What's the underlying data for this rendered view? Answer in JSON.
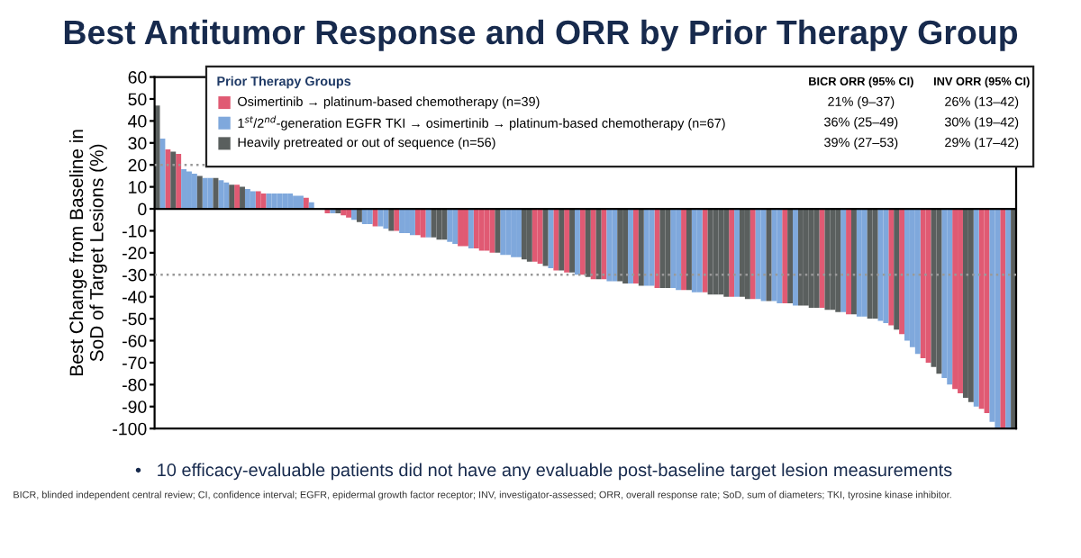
{
  "chart_data": {
    "type": "bar",
    "title": "Best Antitumor Response and ORR by Prior Therapy Group",
    "ylabel": "Best Change from Baseline in\nSoD of Target Lesions (%)",
    "legend_title": "Prior Therapy Groups",
    "legend": "top",
    "categories": [
      null,
      null,
      null,
      null,
      null,
      null,
      null,
      null,
      null,
      null,
      null,
      null,
      null,
      null,
      null,
      null,
      null,
      null,
      null,
      null,
      null,
      null,
      null,
      null,
      null,
      null,
      null,
      null,
      null,
      null,
      null,
      null,
      null,
      null,
      null,
      null,
      null,
      null,
      null,
      null,
      null,
      null,
      null,
      null,
      null,
      null,
      null,
      null,
      null,
      null,
      null,
      null,
      null,
      null,
      null,
      null,
      null,
      null,
      null,
      null,
      null,
      null,
      null,
      null,
      null,
      null,
      null,
      null,
      null,
      null,
      null,
      null,
      null,
      null,
      null,
      null,
      null,
      null,
      null,
      null,
      null,
      null,
      null,
      null,
      null,
      null,
      null,
      null,
      null,
      null,
      null,
      null,
      null,
      null,
      null,
      null,
      null,
      null,
      null,
      null,
      null,
      null,
      null,
      null,
      null,
      null,
      null,
      null,
      null,
      null,
      null,
      null,
      null,
      null,
      null,
      null,
      null,
      null,
      null,
      null,
      null,
      null,
      null,
      null,
      null,
      null,
      null,
      null,
      null,
      null,
      null,
      null,
      null,
      null,
      null,
      null,
      null,
      null,
      null,
      null,
      null,
      null,
      null,
      null,
      null,
      null,
      null,
      null,
      null,
      null,
      null,
      null,
      null,
      null,
      null,
      null,
      null,
      null,
      null,
      null,
      null,
      null
    ],
    "series": [
      {
        "name": "Osimertinib → platinum-based chemotherapy (n=39)",
        "color": "#e05a73",
        "values": [
          null,
          null,
          27,
          null,
          25,
          null,
          null,
          null,
          null,
          null,
          null,
          null,
          null,
          null,
          null,
          11,
          null,
          null,
          null,
          8,
          7,
          null,
          null,
          null,
          null,
          null,
          null,
          null,
          5,
          null,
          null,
          null,
          -2,
          null,
          null,
          -3,
          -4,
          null,
          null,
          null,
          null,
          -8,
          null,
          null,
          null,
          -10,
          null,
          null,
          null,
          -12,
          -13,
          null,
          null,
          null,
          null,
          null,
          null,
          -17,
          -17,
          null,
          -18,
          -19,
          -19,
          -20,
          null,
          null,
          null,
          null,
          null,
          null,
          null,
          -24,
          -25,
          null,
          null,
          -28,
          null,
          -29,
          null,
          null,
          -30,
          null,
          -32,
          null,
          -32,
          null,
          null,
          null,
          null,
          null,
          -34,
          null,
          null,
          null,
          -36,
          null,
          null,
          null,
          null,
          -37,
          null,
          null,
          null,
          -38,
          null,
          null,
          null,
          null,
          -40,
          null,
          null,
          null,
          -41,
          null,
          null,
          null,
          null,
          null,
          -43,
          null,
          null,
          null,
          null,
          null,
          null,
          -45,
          null,
          null,
          null,
          null,
          -48,
          null,
          null,
          null,
          null,
          null,
          null,
          null,
          -53,
          null,
          -57,
          null,
          null,
          null,
          -68,
          -70,
          null,
          null,
          null,
          null,
          -82,
          -84,
          null,
          null,
          null,
          -91,
          -93,
          null,
          null,
          -100,
          null,
          null
        ]
      },
      {
        "name": "1$^{st}$/2$^{nd}$-generation EGFR TKI → osimertinib → platinum-based chemotherapy (n=67)",
        "color": "#7fa8dc",
        "values": [
          null,
          32,
          null,
          null,
          null,
          18,
          17,
          16,
          null,
          14,
          14,
          null,
          13,
          12,
          null,
          null,
          null,
          9,
          8,
          null,
          null,
          7,
          7,
          7,
          7,
          7,
          6,
          6,
          null,
          3,
          null,
          null,
          null,
          -2,
          null,
          null,
          null,
          -5,
          null,
          -7,
          -7,
          null,
          -8,
          -9,
          null,
          null,
          -11,
          -11,
          -12,
          null,
          null,
          -13,
          null,
          null,
          null,
          -15,
          -16,
          null,
          null,
          -18,
          null,
          null,
          null,
          null,
          null,
          -21,
          -21,
          -22,
          -22,
          null,
          null,
          null,
          null,
          null,
          -27,
          null,
          null,
          null,
          null,
          -30,
          null,
          null,
          null,
          null,
          null,
          -33,
          -33,
          null,
          null,
          -34,
          null,
          null,
          -35,
          -35,
          null,
          null,
          null,
          -36,
          -37,
          null,
          null,
          -38,
          -38,
          null,
          null,
          null,
          null,
          null,
          null,
          -40,
          null,
          null,
          null,
          -41,
          -42,
          null,
          -42,
          -43,
          null,
          null,
          -44,
          null,
          null,
          null,
          null,
          null,
          null,
          null,
          null,
          -47,
          null,
          null,
          -49,
          -49,
          null,
          null,
          -51,
          -52,
          null,
          null,
          null,
          -60,
          -63,
          -66,
          null,
          null,
          null,
          null,
          -77,
          -80,
          null,
          null,
          null,
          null,
          -90,
          null,
          null,
          -97,
          -100,
          null,
          -100,
          null
        ]
      },
      {
        "name": "Heavily pretreated or out of sequence (n=56)",
        "color": "#5a5f5e",
        "values": [
          47,
          null,
          null,
          26,
          null,
          null,
          null,
          null,
          15,
          null,
          null,
          14,
          null,
          null,
          11,
          null,
          10,
          null,
          null,
          null,
          null,
          null,
          null,
          null,
          null,
          null,
          null,
          null,
          null,
          null,
          0,
          0,
          null,
          null,
          -2,
          null,
          null,
          null,
          -6,
          null,
          null,
          null,
          null,
          null,
          -10,
          null,
          null,
          null,
          null,
          null,
          null,
          null,
          -13,
          -14,
          -14,
          null,
          null,
          null,
          null,
          null,
          null,
          null,
          null,
          null,
          -20,
          null,
          null,
          null,
          null,
          -23,
          -24,
          null,
          null,
          -26,
          null,
          null,
          -28,
          null,
          -29,
          null,
          null,
          -31,
          null,
          -32,
          null,
          null,
          null,
          -33,
          -34,
          null,
          null,
          -35,
          null,
          null,
          null,
          -36,
          -36,
          null,
          null,
          null,
          -37,
          null,
          null,
          null,
          -39,
          -39,
          -39,
          -40,
          null,
          null,
          -40,
          -41,
          null,
          null,
          null,
          -42,
          null,
          null,
          null,
          -43,
          null,
          -44,
          -44,
          -45,
          -45,
          null,
          -46,
          -46,
          -47,
          null,
          null,
          -48,
          null,
          null,
          -50,
          -50,
          null,
          null,
          null,
          -55,
          null,
          null,
          null,
          null,
          null,
          null,
          -72,
          -75,
          null,
          null,
          null,
          null,
          -86,
          -88,
          null,
          null,
          null,
          null,
          null,
          null,
          null,
          -100
        ]
      }
    ],
    "ylim": [
      -100,
      60
    ],
    "yticks": [
      -100,
      -90,
      -80,
      -70,
      -60,
      -50,
      -40,
      -30,
      -20,
      -10,
      0,
      10,
      20,
      30,
      40,
      50,
      60
    ],
    "ref_lines": [
      {
        "axis": "y",
        "value": 20,
        "color": "#999999",
        "line_style": "dotted"
      },
      {
        "axis": "y",
        "value": -30,
        "color": "#999999",
        "line_style": "dotted"
      }
    ],
    "grid": false,
    "annotations": [
      "BICR ORR (95% CI)",
      "INV ORR (95% CI)",
      "21% (9–37)",
      "26% (13–42)",
      "36% (25–49)",
      "30% (19–42)",
      "39% (27–53)",
      "29% (17–42)",
      "•   10 efficacy-evaluable patients did not have any evaluable post-baseline target lesion measurements",
      "BICR, blinded independent central review; CI, confidence interval; EGFR, epidermal growth factor receptor; INV, investigator-assessed; ORR, overall response rate; SoD, sum of diameters; TKI, tyrosine kinase inhibitor."
    ]
  }
}
